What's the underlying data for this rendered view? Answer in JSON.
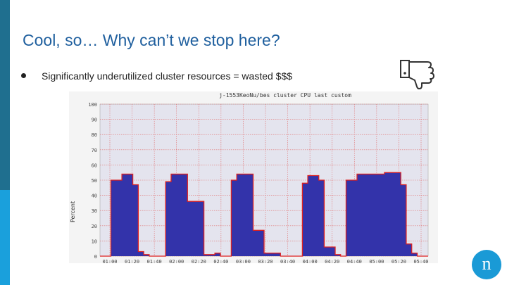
{
  "slide": {
    "title": "Cool, so… Why can’t we stop here?",
    "bullet": "Significantly underutilized cluster resources = wasted $$$",
    "thumb_icon": "thumbs-down-icon",
    "logo_text": "n",
    "accent_colors": [
      "#1f6f8f",
      "#1aa0dc"
    ]
  },
  "chart_data": {
    "type": "area",
    "title": "j-1553KeoNu/bes cluster CPU last custom",
    "xlabel": "",
    "ylabel": "Percent",
    "ylim": [
      0,
      100
    ],
    "yticks": [
      "0",
      "10",
      "20",
      "30",
      "40",
      "50",
      "60",
      "70",
      "80",
      "90",
      "100"
    ],
    "xticks": [
      "01:00",
      "01:20",
      "01:40",
      "02:00",
      "02:20",
      "02:40",
      "03:00",
      "03:20",
      "03:40",
      "04:00",
      "04:20",
      "04:40",
      "05:00",
      "05:20",
      "05:40"
    ],
    "grid": true,
    "fill_color": "#3333aa",
    "line_color": "#dd2222",
    "plot_bg": "#e4e4ee",
    "x": [
      0,
      1,
      1,
      2,
      2,
      4,
      4,
      6,
      6,
      7,
      7,
      8,
      8,
      9,
      9,
      10,
      10,
      12,
      12,
      13,
      13,
      16,
      16,
      19,
      19,
      21,
      21,
      22,
      22,
      23,
      23,
      24,
      24,
      25,
      25,
      28,
      28,
      30,
      30,
      33,
      33,
      35,
      35,
      37,
      37,
      38,
      38,
      40,
      40,
      41,
      41,
      43,
      43,
      44,
      44,
      45,
      45,
      47,
      47,
      52,
      52,
      55,
      55,
      56,
      56,
      57,
      57,
      58,
      58,
      60
    ],
    "y": [
      0,
      0,
      0,
      0,
      50,
      50,
      54,
      54,
      47,
      47,
      3,
      3,
      1,
      1,
      0,
      0,
      0,
      0,
      49,
      49,
      54,
      54,
      36,
      36,
      1,
      1,
      2,
      2,
      0,
      0,
      0,
      0,
      50,
      50,
      54,
      54,
      17,
      17,
      2,
      2,
      0,
      0,
      0,
      0,
      48,
      48,
      53,
      53,
      50,
      50,
      6,
      6,
      1,
      1,
      0,
      0,
      50,
      50,
      54,
      54,
      55,
      55,
      47,
      47,
      8,
      8,
      2,
      2,
      0,
      0
    ]
  }
}
